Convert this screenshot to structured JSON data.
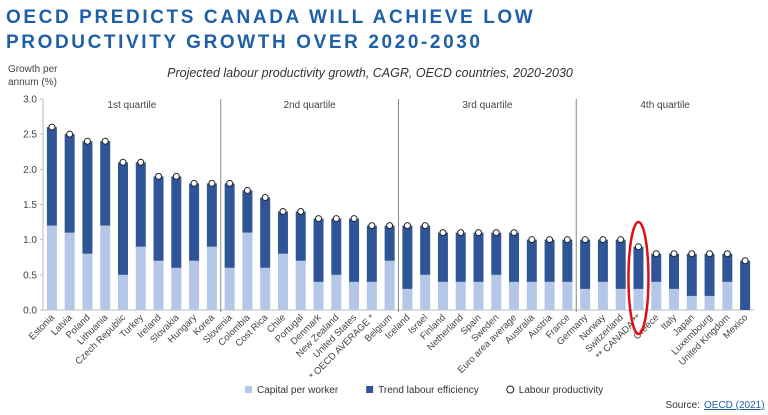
{
  "chart_data": {
    "type": "bar",
    "title_lines": [
      "OECD PREDICTS CANADA WILL ACHIEVE LOW",
      "PRODUCTIVITY GROWTH OVER 2020-2030"
    ],
    "subtitle": "Projected labour productivity growth, CAGR, OECD countries, 2020-2030",
    "y_label_lines": [
      "Growth per",
      "annum (%)"
    ],
    "section_labels": [
      "1st quartile",
      "2nd quartile",
      "3rd quartile",
      "4th quartile"
    ],
    "categories": [
      "Estonia",
      "Latvia",
      "Poland",
      "Lithuania",
      "Czech Republic",
      "Turkey",
      "Ireland",
      "Slovakia",
      "Hungary",
      "Korea",
      "Slovenia",
      "Colombia",
      "Cost Rica",
      "Chile",
      "Portugal",
      "Denmark",
      "New Zealand",
      "United States",
      "* OECD AVERAGE *",
      "Belgium",
      "Iceland",
      "Israel",
      "Finland",
      "Netherland",
      "Spain",
      "Sweden",
      "Euro area average",
      "Australia",
      "Austria",
      "France",
      "Germany",
      "Norway",
      "Switzerland",
      "** CANADA **",
      "Greece",
      "Italy",
      "Japan",
      "Luxembourg",
      "United Kingdom",
      "Mexico"
    ],
    "series": [
      {
        "name": "Capital per worker",
        "color": "#b4c7e7",
        "stack": true,
        "values": [
          1.2,
          1.1,
          0.8,
          1.2,
          0.5,
          0.9,
          0.7,
          0.6,
          0.7,
          0.9,
          0.6,
          1.1,
          0.6,
          0.8,
          0.7,
          0.4,
          0.5,
          0.4,
          0.4,
          0.7,
          0.3,
          0.5,
          0.4,
          0.4,
          0.4,
          0.5,
          0.4,
          0.4,
          0.4,
          0.4,
          0.3,
          0.4,
          0.3,
          0.3,
          0.4,
          0.3,
          0.2,
          0.2,
          0.4,
          0
        ]
      },
      {
        "name": "Trend labour efficiency",
        "color": "#2f5597",
        "stack": true,
        "values": [
          1.4,
          1.4,
          1.6,
          1.2,
          1.6,
          1.2,
          1.2,
          1.3,
          1.1,
          0.9,
          1.2,
          0.6,
          1.0,
          0.6,
          0.7,
          0.9,
          0.8,
          0.9,
          0.8,
          0.5,
          0.9,
          0.7,
          0.7,
          0.7,
          0.7,
          0.6,
          0.7,
          0.6,
          0.6,
          0.6,
          0.7,
          0.6,
          0.7,
          0.6,
          0.4,
          0.5,
          0.6,
          0.6,
          0.4,
          0.7
        ]
      },
      {
        "name": "Labour productivity",
        "color": "#ffffff",
        "stack": false,
        "values": [
          2.6,
          2.5,
          2.4,
          2.4,
          2.1,
          2.1,
          1.9,
          1.9,
          1.8,
          1.8,
          1.8,
          1.7,
          1.6,
          1.4,
          1.4,
          1.3,
          1.3,
          1.3,
          1.2,
          1.2,
          1.2,
          1.2,
          1.1,
          1.1,
          1.1,
          1.1,
          1.1,
          1.0,
          1.0,
          1.0,
          1.0,
          1.0,
          1.0,
          0.9,
          0.8,
          0.8,
          0.8,
          0.8,
          0.8,
          0.7
        ]
      }
    ],
    "ylim": [
      0,
      3.0
    ],
    "yticks": [
      {
        "value": 0,
        "label": "0.0"
      },
      {
        "value": 0.5,
        "label": "0.5"
      },
      {
        "value": 1,
        "label": "1.0"
      },
      {
        "value": 1.5,
        "label": "1.5"
      },
      {
        "value": 2,
        "label": "2.0"
      },
      {
        "value": 2.5,
        "label": "2.5"
      },
      {
        "value": 3,
        "label": "3.0"
      }
    ],
    "source_prefix": "Source:",
    "source_link": "OECD (2021)"
  }
}
